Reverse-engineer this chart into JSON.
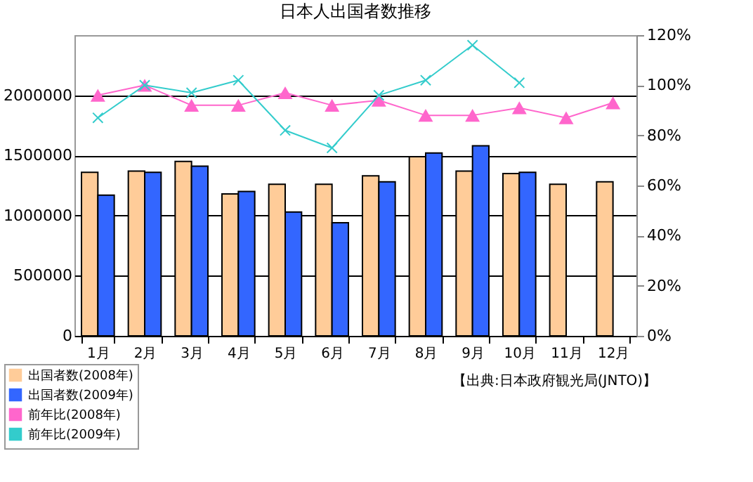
{
  "chart_data": {
    "type": "bar",
    "title": "日本人出国者数推移",
    "categories": [
      "1月",
      "2月",
      "3月",
      "4月",
      "5月",
      "6月",
      "7月",
      "8月",
      "9月",
      "10月",
      "11月",
      "12月"
    ],
    "series": [
      {
        "name": "出国者数(2008年)",
        "color": "#ffcc99",
        "values": [
          1360000,
          1370000,
          1450000,
          1180000,
          1260000,
          1260000,
          1330000,
          1490000,
          1370000,
          1350000,
          1260000,
          1280000
        ]
      },
      {
        "name": "出国者数(2009年)",
        "color": "#3366ff",
        "values": [
          1170000,
          1360000,
          1410000,
          1200000,
          1030000,
          940000,
          1280000,
          1520000,
          1580000,
          1360000,
          null,
          null
        ]
      },
      {
        "name": "前年比(2008年)",
        "type": "line",
        "axis": "y2",
        "marker": "triangle",
        "color": "#ff66cc",
        "values": [
          96,
          100,
          92,
          92,
          97,
          92,
          94,
          88,
          88,
          91,
          87,
          93
        ]
      },
      {
        "name": "前年比(2009年)",
        "type": "line",
        "axis": "y2",
        "marker": "cross",
        "color": "#33cccc",
        "values": [
          87,
          100,
          97,
          102,
          82,
          75,
          96,
          102,
          116,
          101,
          null,
          null
        ]
      }
    ],
    "ylim": [
      0,
      2500000
    ],
    "yticks": [
      0,
      500000,
      1000000,
      1500000,
      2000000
    ],
    "y2lim": [
      0,
      120
    ],
    "y2ticks": [
      {
        "value": 0,
        "label": "0%"
      },
      {
        "value": 20,
        "label": "20%"
      },
      {
        "value": 40,
        "label": "40%"
      },
      {
        "value": 60,
        "label": "60%"
      },
      {
        "value": 80,
        "label": "80%"
      },
      {
        "value": 100,
        "label": "100%"
      },
      {
        "value": 120,
        "label": "120%"
      }
    ],
    "grid": "y",
    "legend": "bottom left",
    "annotations": [
      "【出典:日本政府観光局(JNTO)】"
    ]
  }
}
